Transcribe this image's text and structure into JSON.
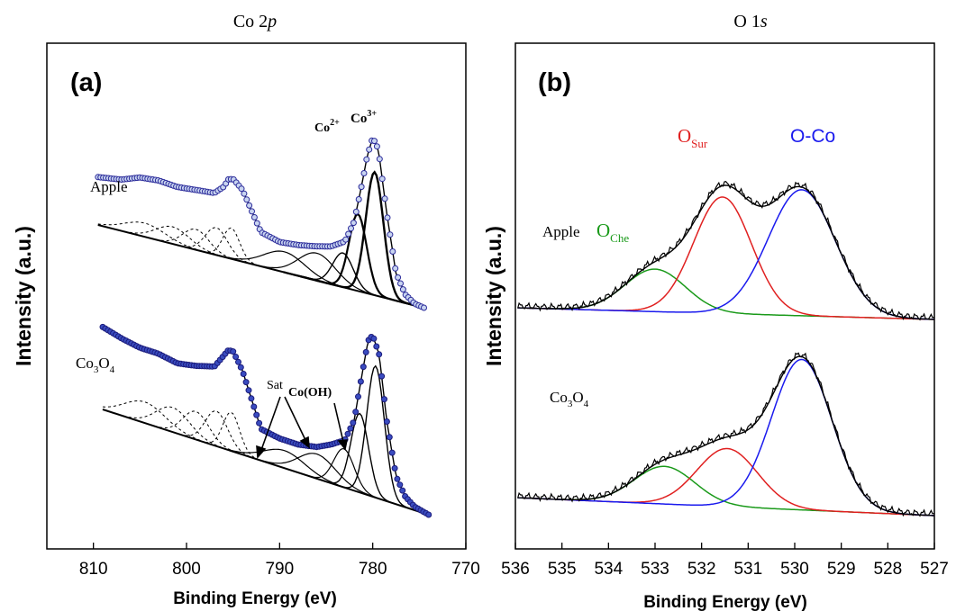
{
  "chart_data": [
    {
      "type": "line",
      "panel_label": "(a)",
      "title": "Co 2p",
      "title_main": "Co 2",
      "title_italic": "p",
      "xlabel": "Binding Energy (eV)",
      "ylabel": "Intensity (a.u.)",
      "xlim": [
        815,
        770
      ],
      "x_reversed": true,
      "xticks": [
        810,
        800,
        790,
        780,
        770
      ],
      "y_ticks_shown": false,
      "grid": false,
      "series_labels": {
        "apple": "Apple",
        "co3o4_base": "Co",
        "co3o4_sub1": "3",
        "co3o4_mid": "O",
        "co3o4_sub2": "4"
      },
      "annotations": {
        "co2": "Co",
        "co2_sup": "2+",
        "co3": "Co",
        "co3_sup": "3+",
        "sat": "Sat",
        "cooh": "Co(OH)"
      },
      "series": [
        {
          "name": "Apple",
          "x": [
            809.5,
            807,
            805,
            803,
            801,
            799,
            797,
            796,
            795.5,
            795,
            794,
            792,
            790,
            788,
            786,
            784.5,
            783,
            782,
            781.2,
            780.6,
            780,
            779.4,
            778.5,
            777.5,
            776.5,
            775.5,
            774.5
          ],
          "y": [
            0.28,
            0.3,
            0.34,
            0.35,
            0.34,
            0.35,
            0.36,
            0.41,
            0.46,
            0.47,
            0.42,
            0.2,
            0.17,
            0.18,
            0.2,
            0.22,
            0.27,
            0.4,
            0.62,
            0.8,
            0.92,
            0.86,
            0.5,
            0.16,
            0.05,
            0.01,
            0.0
          ]
        },
        {
          "name": "Co3O4",
          "x": [
            809,
            807,
            805,
            803,
            801,
            799,
            797,
            796,
            795.5,
            795,
            794,
            792,
            790,
            788,
            786,
            784.5,
            783,
            782,
            781.2,
            780.5,
            780,
            779.3,
            778.5,
            777.5,
            776.5,
            775.5,
            774
          ],
          "y": [
            0.47,
            0.44,
            0.42,
            0.42,
            0.4,
            0.42,
            0.45,
            0.53,
            0.57,
            0.57,
            0.48,
            0.18,
            0.16,
            0.16,
            0.18,
            0.22,
            0.27,
            0.4,
            0.66,
            0.88,
            0.92,
            0.82,
            0.46,
            0.16,
            0.06,
            0.02,
            0.0
          ]
        }
      ]
    },
    {
      "type": "line",
      "panel_label": "(b)",
      "title": "O 1s",
      "title_main": "O 1",
      "title_italic": "s",
      "xlabel": "Binding Energy (eV)",
      "ylabel": "Intensity (a.u.)",
      "xlim": [
        536,
        527
      ],
      "x_reversed": true,
      "xticks": [
        536,
        535,
        534,
        533,
        532,
        531,
        530,
        529,
        528,
        527
      ],
      "y_ticks_shown": false,
      "grid": false,
      "series_labels": {
        "apple": "Apple",
        "co3o4_base": "Co",
        "co3o4_sub1": "3",
        "co3o4_mid": "O",
        "co3o4_sub2": "4"
      },
      "component_labels": {
        "ochem": "O",
        "ochem_sub": "Che",
        "osur": "O",
        "osur_sub": "Sur",
        "oco": "O-Co"
      },
      "colors": {
        "O_Che": "#1a9a1a",
        "O_Sur": "#e02020",
        "O-Co": "#1a1aee",
        "envelope": "#000000"
      },
      "components": {
        "apple": [
          {
            "name": "O_Che",
            "center": 533.0,
            "sigma": 0.65,
            "amp": 0.27
          },
          {
            "name": "O_Sur",
            "center": 531.55,
            "sigma": 0.62,
            "amp": 0.74
          },
          {
            "name": "O-Co",
            "center": 529.85,
            "sigma": 0.72,
            "amp": 0.8
          }
        ],
        "co3o4": [
          {
            "name": "O_Che",
            "center": 532.8,
            "sigma": 0.65,
            "amp": 0.22
          },
          {
            "name": "O_Sur",
            "center": 531.45,
            "sigma": 0.65,
            "amp": 0.34
          },
          {
            "name": "O-Co",
            "center": 529.85,
            "sigma": 0.65,
            "amp": 0.88
          }
        ]
      }
    }
  ]
}
